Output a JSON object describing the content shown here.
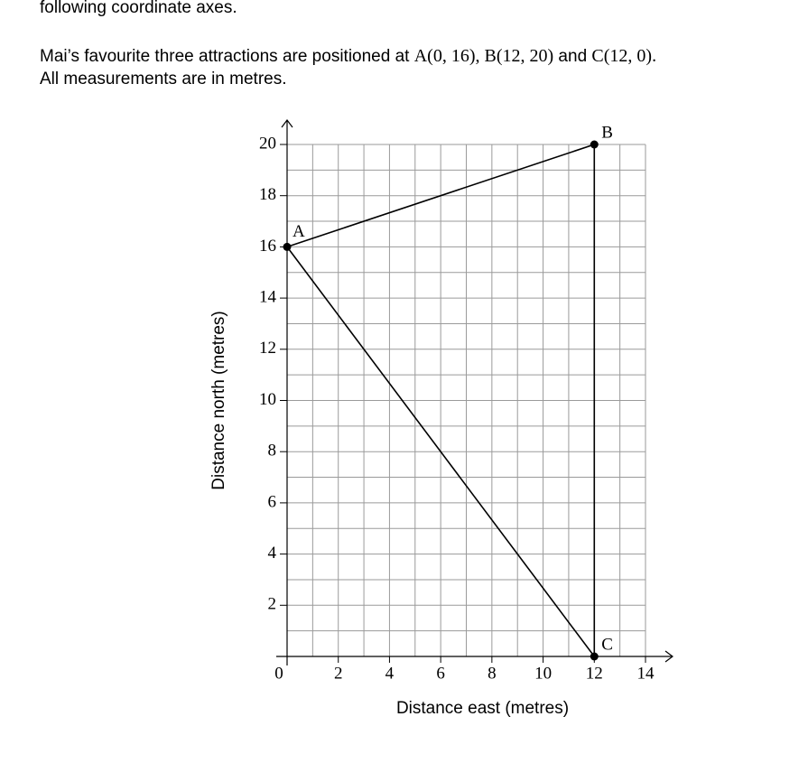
{
  "intro": {
    "line1": "following coordinate axes.",
    "line2": [
      "Mai’s favourite three attractions are positioned at ",
      "A(0, 16)",
      ", ",
      "B(12, 20)",
      " and ",
      "C(12, 0)",
      "."
    ],
    "line3": "All measurements are in metres."
  },
  "chart_data": {
    "type": "polygon",
    "x": [
      0,
      12,
      12
    ],
    "values": [
      16,
      20,
      0
    ],
    "point_labels": [
      "A",
      "B",
      "C"
    ],
    "xlabel": "Distance east (metres)",
    "ylabel": "Distance north (metres)",
    "xlim": [
      0,
      14
    ],
    "ylim": [
      0,
      20
    ],
    "xticks": [
      0,
      2,
      4,
      6,
      8,
      10,
      12,
      14
    ],
    "yticks": [
      2,
      4,
      6,
      8,
      10,
      12,
      14,
      16,
      18,
      20
    ],
    "grid": true,
    "grid_step": 1,
    "color": "#000000"
  }
}
